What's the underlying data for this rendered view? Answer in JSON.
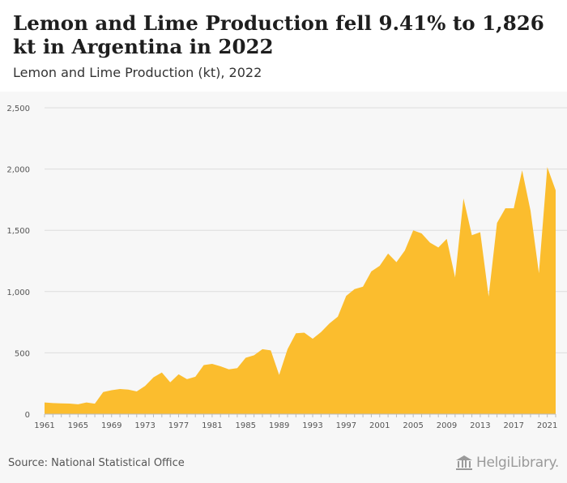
{
  "header": {
    "title": "Lemon and Lime Production fell 9.41% to 1,826 kt in Argentina in 2022",
    "subtitle": "Lemon and Lime Production (kt), 2022"
  },
  "footer": {
    "source": "Source: National Statistical Office",
    "brand": "HelgiLibrary."
  },
  "colors": {
    "area_fill": "#fbbd2e",
    "grid": "#dddddd",
    "axis": "#bbbbbb",
    "background": "#f7f7f7"
  },
  "chart_data": {
    "type": "area",
    "title": "Lemon and Lime Production (kt), 2022",
    "xlabel": "",
    "ylabel": "",
    "ylim": [
      0,
      2500
    ],
    "xlim": [
      1961,
      2022
    ],
    "yticks": [
      0,
      500,
      1000,
      1500,
      2000,
      2500
    ],
    "ytick_labels": [
      "0",
      "500",
      "1,000",
      "1,500",
      "2,000",
      "2,500"
    ],
    "xtick_labels": [
      "1961",
      "1965",
      "1969",
      "1973",
      "1977",
      "1981",
      "1985",
      "1989",
      "1993",
      "1997",
      "2001",
      "2005",
      "2009",
      "2013",
      "2017",
      "2021"
    ],
    "grid": true,
    "x": [
      1961,
      1962,
      1963,
      1964,
      1965,
      1966,
      1967,
      1968,
      1969,
      1970,
      1971,
      1972,
      1973,
      1974,
      1975,
      1976,
      1977,
      1978,
      1979,
      1980,
      1981,
      1982,
      1983,
      1984,
      1985,
      1986,
      1987,
      1988,
      1989,
      1990,
      1991,
      1992,
      1993,
      1994,
      1995,
      1996,
      1997,
      1998,
      1999,
      2000,
      2001,
      2002,
      2003,
      2004,
      2005,
      2006,
      2007,
      2008,
      2009,
      2010,
      2011,
      2012,
      2013,
      2014,
      2015,
      2016,
      2017,
      2018,
      2019,
      2020,
      2021,
      2022
    ],
    "series": [
      {
        "values": [
          95,
          90,
          88,
          86,
          80,
          95,
          85,
          180,
          195,
          205,
          200,
          185,
          230,
          300,
          340,
          260,
          325,
          285,
          305,
          400,
          410,
          390,
          365,
          375,
          460,
          480,
          530,
          520,
          320,
          530,
          660,
          665,
          615,
          670,
          740,
          795,
          965,
          1020,
          1040,
          1165,
          1210,
          1310,
          1240,
          1335,
          1500,
          1475,
          1400,
          1360,
          1430,
          1115,
          1760,
          1460,
          1485,
          960,
          1560,
          1680,
          1680,
          1990,
          1660,
          1150,
          2016,
          1826
        ]
      }
    ]
  }
}
